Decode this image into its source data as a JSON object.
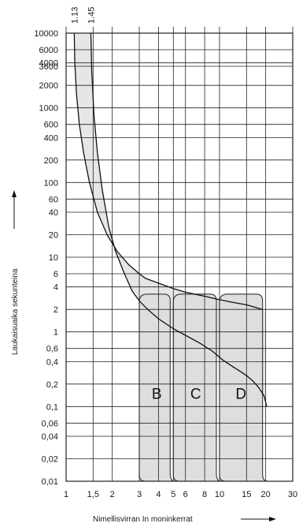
{
  "chart_data": {
    "type": "line",
    "title": "",
    "xlabel": "Nimellisvirran In moninkerrat",
    "ylabel": "Laukaisuaika sekunteina",
    "x_scale": "log",
    "y_scale": "log",
    "xlim": [
      1,
      30
    ],
    "ylim": [
      0.01,
      10000
    ],
    "grid": true,
    "x_ticks": [
      1,
      1.5,
      2,
      3,
      4,
      5,
      6,
      8,
      10,
      15,
      20,
      30
    ],
    "x_tick_labels": [
      "1",
      "1,5",
      "2",
      "3",
      "4",
      "5",
      "6",
      "8",
      "10",
      "15",
      "20",
      "30"
    ],
    "y_ticks": [
      0.01,
      0.02,
      0.04,
      0.06,
      0.1,
      0.2,
      0.4,
      0.6,
      1,
      2,
      4,
      6,
      10,
      20,
      40,
      60,
      100,
      200,
      400,
      600,
      1000,
      2000,
      3600,
      4000,
      6000,
      10000
    ],
    "y_tick_labels": [
      "0,01",
      "0,02",
      "0,04",
      "0,06",
      "0,1",
      "0,2",
      "0,4",
      "0,6",
      "1",
      "2",
      "4",
      "6",
      "10",
      "20",
      "40",
      "60",
      "100",
      "200",
      "400",
      "600",
      "1000",
      "2000",
      "3600",
      "4000",
      "6000",
      "10000"
    ],
    "top_labels": [
      "1.13",
      "1.45"
    ],
    "top_label_x": [
      1.13,
      1.45
    ],
    "series": [
      {
        "x": [
          1.13,
          1.14,
          1.17,
          1.22,
          1.3,
          1.42,
          1.6,
          1.85,
          2.15,
          2.55,
          3.0,
          3.3,
          4.0,
          5.0,
          6.0,
          8.0,
          10.0,
          12.0,
          15.0,
          19.0
        ],
        "y": [
          10000,
          4000,
          1500,
          600,
          250,
          100,
          40,
          20,
          12,
          8,
          6,
          5.2,
          4.5,
          3.8,
          3.4,
          3.0,
          2.7,
          2.5,
          2.3,
          2.0
        ]
      },
      {
        "x": [
          1.45,
          1.47,
          1.52,
          1.6,
          1.72,
          1.9,
          2.1,
          2.4,
          2.7,
          3.0,
          3.4,
          4.0,
          5.0,
          6.0,
          7.5,
          9.0,
          10.5,
          12.0,
          13.5,
          15.0,
          16.5,
          18.0,
          19.5,
          20.3
        ],
        "y": [
          10000,
          3000,
          800,
          250,
          80,
          25,
          12,
          6,
          3.5,
          2.6,
          2.0,
          1.5,
          1.1,
          0.9,
          0.7,
          0.55,
          0.42,
          0.35,
          0.3,
          0.26,
          0.22,
          0.18,
          0.14,
          0.1
        ]
      }
    ],
    "zones": [
      {
        "label": "B",
        "x_range": [
          3,
          5
        ],
        "label_x": 3.9,
        "label_y": 0.15
      },
      {
        "label": "C",
        "x_range": [
          5,
          10
        ],
        "label_x": 7.0,
        "label_y": 0.15
      },
      {
        "label": "D",
        "x_range": [
          10,
          20
        ],
        "label_x": 13.8,
        "label_y": 0.15
      }
    ],
    "zone_colors": {
      "band": "#e6e6e6",
      "zone": "#dedede",
      "grid": "#222222"
    }
  }
}
